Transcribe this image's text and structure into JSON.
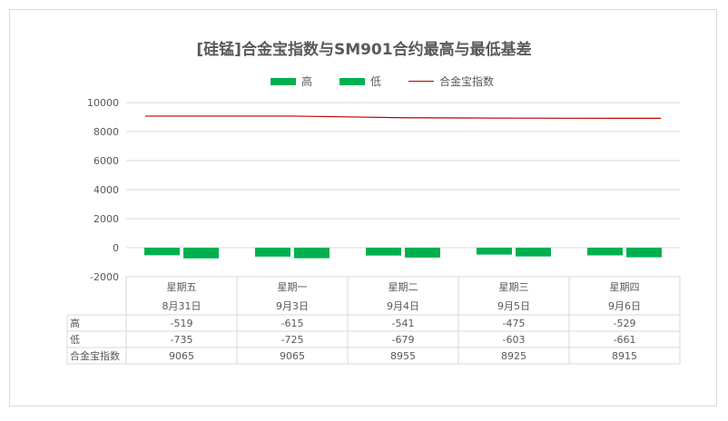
{
  "chart_data": {
    "type": "bar",
    "title": "[硅锰]合金宝指数与SM901合约最高与最低基差",
    "categories": [
      "星期五",
      "星期一",
      "星期二",
      "星期三",
      "星期四"
    ],
    "dates": [
      "8月31日",
      "9月3日",
      "9月4日",
      "9月5日",
      "9月6日"
    ],
    "series": [
      {
        "name": "高",
        "kind": "bar",
        "color": "#00b050",
        "values": [
          -519,
          -615,
          -541,
          -475,
          -529
        ]
      },
      {
        "name": "低",
        "kind": "bar",
        "color": "#00b050",
        "values": [
          -735,
          -725,
          -679,
          -603,
          -661
        ]
      },
      {
        "name": "合金宝指数",
        "kind": "line",
        "color": "#c00000",
        "values": [
          9065,
          9065,
          8955,
          8925,
          8915
        ]
      }
    ],
    "ylim": [
      -2000,
      10000
    ],
    "yticks": [
      -2000,
      0,
      2000,
      4000,
      6000,
      8000,
      10000
    ],
    "ytick_labels": [
      "-2000",
      "0",
      "2000",
      "4000",
      "6000",
      "8000",
      "10000"
    ],
    "grid": true,
    "legend_position": "top",
    "data_table": true
  }
}
